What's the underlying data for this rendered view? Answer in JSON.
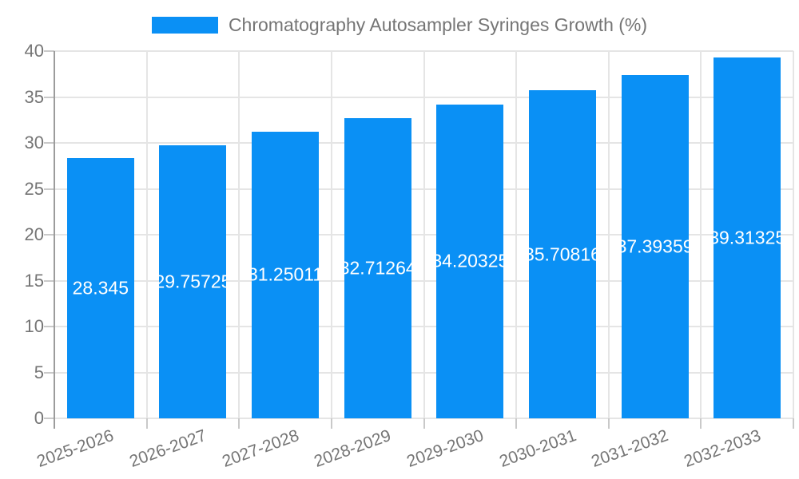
{
  "legend": {
    "swatch_color": "#0a90f5",
    "label": "Chromatography Autosampler Syringes Growth (%)"
  },
  "chart_data": {
    "type": "bar",
    "title": "Chromatography Autosampler Syringes Growth (%)",
    "categories": [
      "2025-2026",
      "2026-2027",
      "2027-2028",
      "2028-2029",
      "2029-2030",
      "2030-2031",
      "2031-2032",
      "2032-2033"
    ],
    "values": [
      28.345,
      29.75725,
      31.25011,
      32.71264,
      34.20325,
      35.70816,
      37.39359,
      39.31325
    ],
    "bar_labels": [
      "28.345",
      "29.75725",
      "31.25011",
      "32.71264",
      "34.20325",
      "35.70816",
      "37.39359",
      "39.31325"
    ],
    "xlabel": "",
    "ylabel": "",
    "ylim": [
      0,
      40
    ],
    "yticks": [
      0,
      5,
      10,
      15,
      20,
      25,
      30,
      35,
      40
    ],
    "grid": true,
    "legend_position": "top",
    "bar_color": "#0a90f5",
    "bar_label_color": "#ffffff",
    "axis_text_color": "#757575",
    "gridline_color": "#e5e5e5"
  }
}
